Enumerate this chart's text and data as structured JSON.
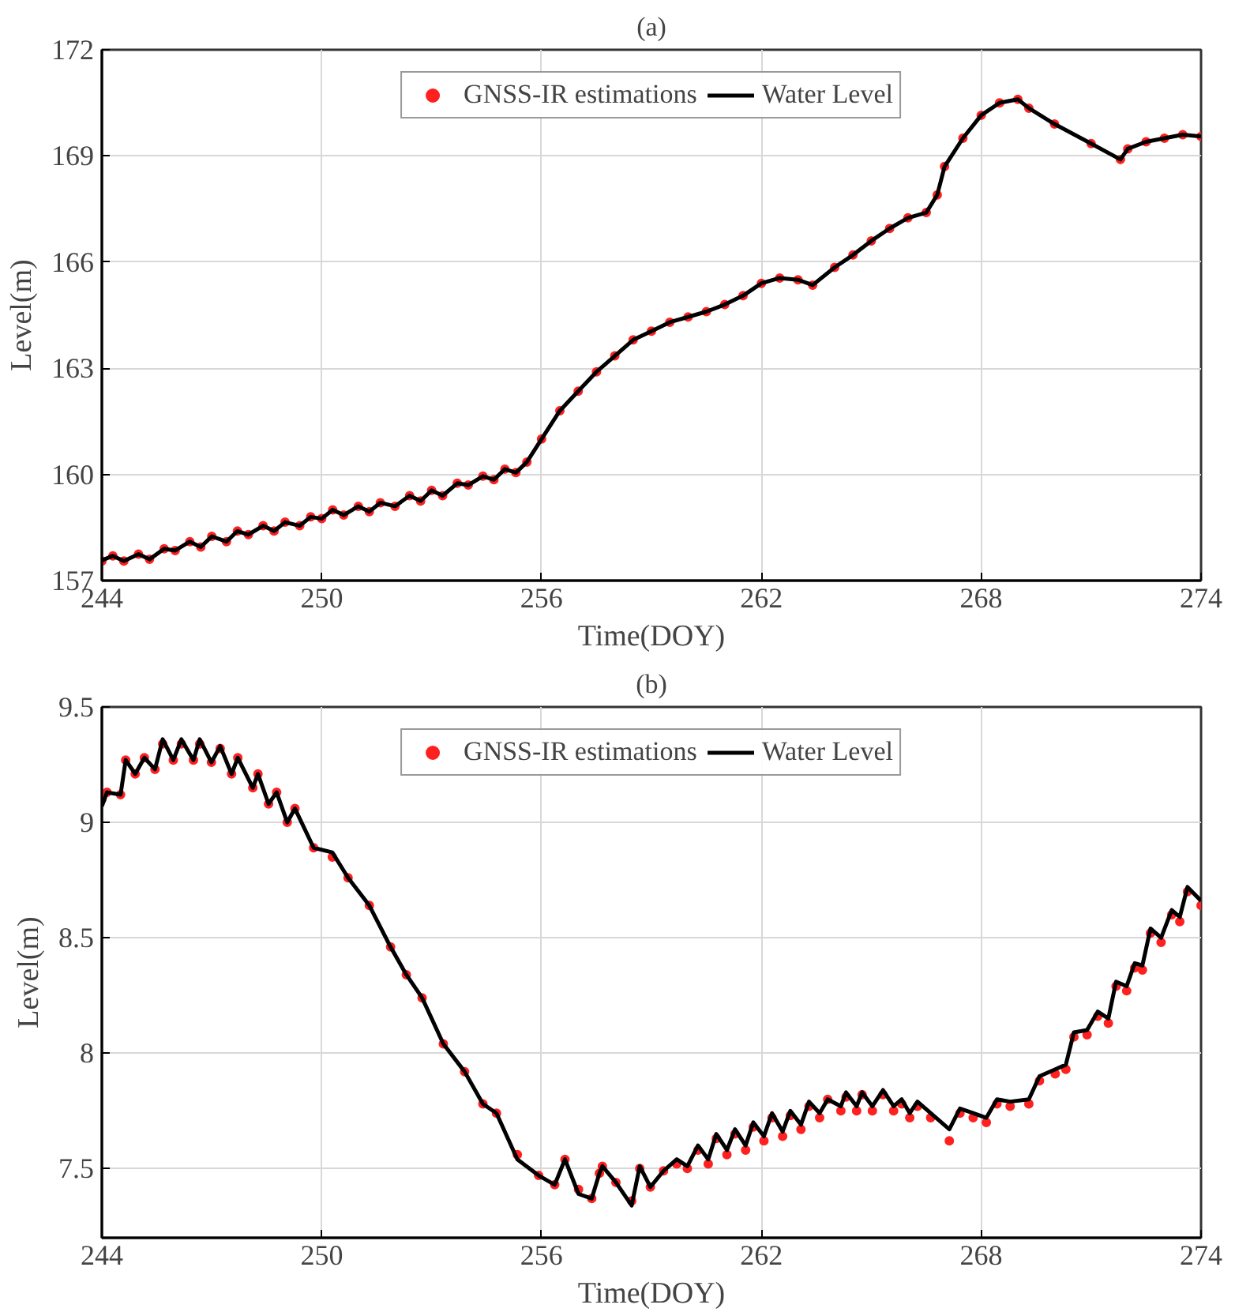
{
  "chart_data": [
    {
      "type": "line",
      "title": "(a)",
      "xlabel": "Time(DOY)",
      "ylabel": "Level(m)",
      "xlim": [
        244,
        274
      ],
      "xticks": [
        244,
        250,
        256,
        262,
        268,
        274
      ],
      "ylim": [
        157,
        172
      ],
      "yticks": [
        157,
        160,
        163,
        166,
        169,
        172
      ],
      "grid": true,
      "legend": "top",
      "series": [
        {
          "name": "GNSS-IR estimations",
          "color": "#ff2020",
          "type": "scatter",
          "marker": "circle",
          "x": [
            244,
            244.3,
            244.6,
            245,
            245.3,
            245.7,
            246,
            246.4,
            246.7,
            247,
            247.4,
            247.7,
            248,
            248.4,
            248.7,
            249,
            249.4,
            249.7,
            250,
            250.3,
            250.6,
            251,
            251.3,
            251.6,
            252,
            252.4,
            252.7,
            253,
            253.3,
            253.7,
            254,
            254.4,
            254.7,
            255,
            255.3,
            255.6,
            256,
            256.5,
            257,
            257.5,
            258,
            258.5,
            259,
            259.5,
            260,
            260.5,
            261,
            261.5,
            262,
            262.5,
            263,
            263.4,
            264,
            264.5,
            265,
            265.5,
            266,
            266.5,
            266.8,
            267,
            267.5,
            268,
            268.5,
            269,
            269.3,
            270,
            271,
            271.8,
            272,
            272.5,
            273,
            273.5,
            274
          ],
          "values": [
            157.55,
            157.7,
            157.55,
            157.75,
            157.6,
            157.9,
            157.85,
            158.1,
            157.95,
            158.25,
            158.1,
            158.4,
            158.3,
            158.55,
            158.4,
            158.65,
            158.55,
            158.8,
            158.75,
            159.0,
            158.85,
            159.1,
            158.95,
            159.2,
            159.1,
            159.4,
            159.25,
            159.55,
            159.4,
            159.75,
            159.7,
            159.95,
            159.85,
            160.15,
            160.05,
            160.35,
            161.0,
            161.8,
            162.35,
            162.9,
            163.35,
            163.8,
            164.05,
            164.3,
            164.45,
            164.6,
            164.8,
            165.05,
            165.4,
            165.55,
            165.5,
            165.35,
            165.85,
            166.2,
            166.6,
            166.95,
            167.25,
            167.4,
            167.9,
            168.7,
            169.5,
            170.15,
            170.5,
            170.6,
            170.35,
            169.9,
            169.35,
            168.9,
            169.2,
            169.4,
            169.5,
            169.6,
            169.55
          ]
        },
        {
          "name": "Water Level",
          "color": "#000000",
          "x": [
            244,
            244.3,
            244.6,
            245,
            245.3,
            245.7,
            246,
            246.4,
            246.7,
            247,
            247.4,
            247.7,
            248,
            248.4,
            248.7,
            249,
            249.4,
            249.7,
            250,
            250.3,
            250.6,
            251,
            251.3,
            251.6,
            252,
            252.4,
            252.7,
            253,
            253.3,
            253.7,
            254,
            254.4,
            254.7,
            255,
            255.3,
            255.6,
            256,
            256.5,
            257,
            257.5,
            258,
            258.5,
            259,
            259.5,
            260,
            260.5,
            261,
            261.5,
            262,
            262.5,
            263,
            263.4,
            264,
            264.5,
            265,
            265.5,
            266,
            266.5,
            266.8,
            267,
            267.5,
            268,
            268.5,
            269,
            269.3,
            270,
            271,
            271.8,
            272,
            272.5,
            273,
            273.5,
            274
          ],
          "values": [
            157.57,
            157.7,
            157.55,
            157.75,
            157.6,
            157.9,
            157.85,
            158.1,
            157.95,
            158.25,
            158.1,
            158.4,
            158.3,
            158.55,
            158.4,
            158.65,
            158.55,
            158.8,
            158.75,
            159.0,
            158.85,
            159.1,
            158.95,
            159.2,
            159.1,
            159.4,
            159.25,
            159.55,
            159.4,
            159.75,
            159.7,
            159.95,
            159.85,
            160.15,
            160.05,
            160.35,
            161.0,
            161.8,
            162.35,
            162.9,
            163.35,
            163.8,
            164.05,
            164.3,
            164.45,
            164.6,
            164.8,
            165.05,
            165.4,
            165.55,
            165.5,
            165.35,
            165.85,
            166.2,
            166.6,
            166.95,
            167.25,
            167.4,
            167.9,
            168.7,
            169.5,
            170.15,
            170.5,
            170.6,
            170.35,
            169.9,
            169.35,
            168.9,
            169.2,
            169.4,
            169.5,
            169.6,
            169.55
          ]
        }
      ]
    },
    {
      "type": "line",
      "title": "(b)",
      "xlabel": "Time(DOY)",
      "ylabel": "Level(m)",
      "xlim": [
        244,
        274
      ],
      "xticks": [
        244,
        250,
        256,
        262,
        268,
        274
      ],
      "ylim": [
        7.2,
        9.5
      ],
      "yticks": [
        7.5,
        8,
        8.5,
        9,
        9.5
      ],
      "grid": true,
      "legend": "top",
      "series": [
        {
          "name": "GNSS-IR estimations",
          "color": "#ff2020",
          "type": "scatter",
          "marker": "circle",
          "x": [
            244,
            244.14,
            244.51,
            244.65,
            244.91,
            245.16,
            245.45,
            245.66,
            245.95,
            246.17,
            246.5,
            246.67,
            246.99,
            247.23,
            247.54,
            247.71,
            248.12,
            248.26,
            248.55,
            248.77,
            249.06,
            249.27,
            249.78,
            250.29,
            250.72,
            251.3,
            251.88,
            252.31,
            252.74,
            253.32,
            253.9,
            254.4,
            254.77,
            255.34,
            255.92,
            256.36,
            256.64,
            257.01,
            257.37,
            257.58,
            257.66,
            258.03,
            258.46,
            258.68,
            258.97,
            259.33,
            259.69,
            259.98,
            260.27,
            260.55,
            260.77,
            261.06,
            261.28,
            261.57,
            261.78,
            262.07,
            262.29,
            262.58,
            262.79,
            263.08,
            263.3,
            263.59,
            263.81,
            264.17,
            264.31,
            264.6,
            264.75,
            265.03,
            265.32,
            265.61,
            265.83,
            266.05,
            266.26,
            266.62,
            267.13,
            267.42,
            267.78,
            268.14,
            268.43,
            268.79,
            269.3,
            269.59,
            270.02,
            270.31,
            270.53,
            270.89,
            271.18,
            271.47,
            271.68,
            271.97,
            272.19,
            272.4,
            272.62,
            272.91,
            273.2,
            273.42,
            273.63,
            274.0
          ],
          "values": [
            9.1,
            9.13,
            9.12,
            9.27,
            9.21,
            9.28,
            9.23,
            9.34,
            9.27,
            9.34,
            9.27,
            9.34,
            9.26,
            9.32,
            9.21,
            9.28,
            9.15,
            9.21,
            9.08,
            9.13,
            9.0,
            9.06,
            8.89,
            8.85,
            8.76,
            8.64,
            8.46,
            8.34,
            8.24,
            8.04,
            7.92,
            7.78,
            7.74,
            7.56,
            7.47,
            7.43,
            7.54,
            7.41,
            7.37,
            7.48,
            7.51,
            7.44,
            7.36,
            7.5,
            7.42,
            7.49,
            7.52,
            7.5,
            7.58,
            7.52,
            7.63,
            7.56,
            7.65,
            7.58,
            7.68,
            7.62,
            7.72,
            7.64,
            7.73,
            7.67,
            7.77,
            7.72,
            7.8,
            7.75,
            7.81,
            7.75,
            7.82,
            7.75,
            7.82,
            7.75,
            7.78,
            7.72,
            7.77,
            7.72,
            7.62,
            7.74,
            7.72,
            7.7,
            7.78,
            7.77,
            7.78,
            7.88,
            7.91,
            7.93,
            8.07,
            8.08,
            8.16,
            8.13,
            8.29,
            8.27,
            8.37,
            8.36,
            8.52,
            8.48,
            8.6,
            8.57,
            8.7,
            8.64
          ]
        },
        {
          "name": "Water Level",
          "color": "#000000",
          "x": [
            244,
            244.14,
            244.51,
            244.65,
            244.91,
            245.16,
            245.45,
            245.66,
            245.95,
            246.17,
            246.5,
            246.67,
            246.99,
            247.23,
            247.54,
            247.71,
            248.12,
            248.26,
            248.55,
            248.77,
            249.06,
            249.27,
            249.78,
            250.29,
            250.72,
            251.3,
            251.88,
            252.31,
            252.74,
            253.32,
            253.9,
            254.4,
            254.77,
            255.34,
            255.92,
            256.36,
            256.64,
            257.01,
            257.37,
            257.58,
            257.66,
            258.03,
            258.46,
            258.68,
            258.97,
            259.33,
            259.69,
            259.98,
            260.27,
            260.55,
            260.77,
            261.06,
            261.28,
            261.57,
            261.78,
            262.07,
            262.29,
            262.58,
            262.79,
            263.08,
            263.3,
            263.59,
            263.81,
            264.17,
            264.31,
            264.6,
            264.75,
            265.03,
            265.32,
            265.61,
            265.83,
            266.05,
            266.26,
            266.62,
            267.13,
            267.42,
            267.78,
            268.14,
            268.43,
            268.79,
            269.3,
            269.59,
            270.02,
            270.31,
            270.53,
            270.89,
            271.18,
            271.47,
            271.68,
            271.97,
            272.19,
            272.4,
            272.62,
            272.91,
            273.2,
            273.42,
            273.63,
            274.0
          ],
          "values": [
            9.07,
            9.13,
            9.12,
            9.27,
            9.21,
            9.28,
            9.23,
            9.36,
            9.27,
            9.36,
            9.27,
            9.36,
            9.26,
            9.33,
            9.21,
            9.28,
            9.15,
            9.21,
            9.08,
            9.13,
            9.0,
            9.06,
            8.89,
            8.87,
            8.76,
            8.64,
            8.46,
            8.34,
            8.24,
            8.04,
            7.92,
            7.78,
            7.74,
            7.54,
            7.47,
            7.43,
            7.54,
            7.39,
            7.37,
            7.48,
            7.51,
            7.44,
            7.34,
            7.51,
            7.42,
            7.49,
            7.54,
            7.51,
            7.6,
            7.54,
            7.65,
            7.58,
            7.67,
            7.6,
            7.7,
            7.64,
            7.74,
            7.66,
            7.75,
            7.69,
            7.79,
            7.74,
            7.8,
            7.77,
            7.83,
            7.77,
            7.83,
            7.77,
            7.84,
            7.77,
            7.8,
            7.74,
            7.79,
            7.74,
            7.67,
            7.76,
            7.74,
            7.72,
            7.8,
            7.79,
            7.8,
            7.9,
            7.93,
            7.95,
            8.09,
            8.1,
            8.18,
            8.15,
            8.31,
            8.29,
            8.39,
            8.38,
            8.54,
            8.5,
            8.62,
            8.59,
            8.72,
            8.66
          ]
        }
      ]
    }
  ]
}
